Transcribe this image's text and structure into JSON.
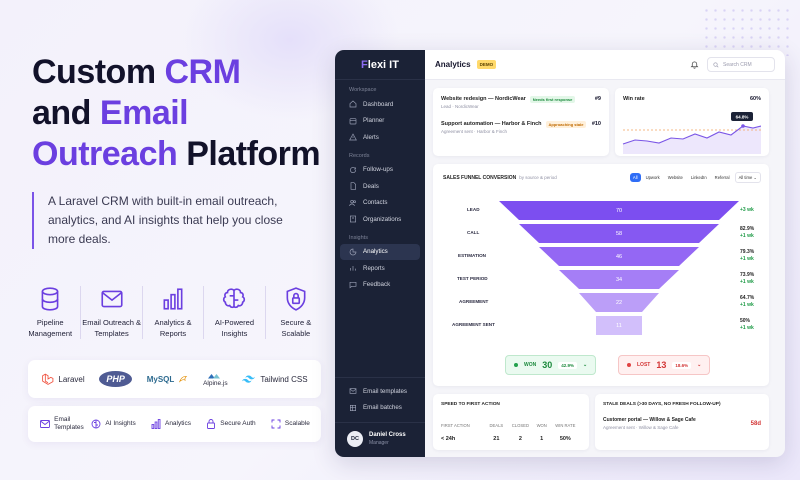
{
  "hero": {
    "line1_a": "Custom ",
    "line1_b": "CRM",
    "line2_a": "and ",
    "line2_b": "Email",
    "line3_a": "Outreach",
    "line3_b": " Platform",
    "subtitle": "A Laravel CRM with built-in email outreach, analytics, and AI insights that help you close more deals.",
    "accent_color": "#6b3fe0"
  },
  "features": [
    {
      "icon": "database-icon",
      "label": "Pipeline Management"
    },
    {
      "icon": "envelope-icon",
      "label": "Email Outreach & Templates"
    },
    {
      "icon": "bar-chart-icon",
      "label": "Analytics & Reports"
    },
    {
      "icon": "brain-icon",
      "label": "AI-Powered Insights"
    },
    {
      "icon": "shield-lock-icon",
      "label": "Secure & Scalable"
    }
  ],
  "tech": [
    "Laravel",
    "PHP",
    "MySQL",
    "Alpine.js",
    "Tailwind CSS"
  ],
  "pills": [
    "Email Templates",
    "AI Insights",
    "Analytics",
    "Secure Auth",
    "Scalable"
  ],
  "app": {
    "brand_a": "F",
    "brand_b": "lexi IT",
    "sections": {
      "workspace": "Workspace",
      "records": "Records",
      "insights": "Insights"
    },
    "nav": {
      "dashboard": "Dashboard",
      "planner": "Planner",
      "alerts": "Alerts",
      "followups": "Follow-ups",
      "deals": "Deals",
      "contacts": "Contacts",
      "organizations": "Organizations",
      "analytics": "Analytics",
      "reports": "Reports",
      "feedback": "Feedback",
      "email_templates": "Email templates",
      "email_batches": "Email batches"
    },
    "user": {
      "initials": "DC",
      "name": "Daniel Cross",
      "role": "Manager"
    },
    "topbar": {
      "title": "Analytics",
      "demo": "DEMO",
      "search_placeholder": "Search CRM"
    },
    "deals": [
      {
        "title": "Website redesign — NordicWear",
        "sub": "Lead · NordicWear",
        "badge": "Needs first response",
        "num": "#9"
      },
      {
        "title": "Support automation — Harbor & Finch",
        "sub": "Agreement sent · Harbor & Finch",
        "badge": "Approaching stale",
        "num": "#10"
      }
    ],
    "winrate": {
      "label": "Win rate",
      "value": "60%",
      "tooltip": "64.8%"
    },
    "funnel": {
      "title": "SALES FUNNEL CONVERSION",
      "subtitle": "by source & period",
      "filters": [
        "All",
        "Upwork",
        "Website",
        "LinkedIn",
        "Referral"
      ],
      "period": "All time",
      "stages": [
        {
          "name": "LEAD",
          "value": "70",
          "pct": "",
          "wk": "+3 wk"
        },
        {
          "name": "CALL",
          "value": "58",
          "pct": "82.9%",
          "wk": "+1 wk"
        },
        {
          "name": "ESTIMATION",
          "value": "46",
          "pct": "79.3%",
          "wk": "+1 wk"
        },
        {
          "name": "TEST PERIOD",
          "value": "34",
          "pct": "73.9%",
          "wk": "+1 wk"
        },
        {
          "name": "AGREEMENT",
          "value": "22",
          "pct": "64.7%",
          "wk": "+1 wk"
        },
        {
          "name": "AGREEMENT SENT",
          "value": "11",
          "pct": "50%",
          "wk": "+1 wk"
        }
      ],
      "won": {
        "label": "WON",
        "count": "30",
        "pct": "42.9%"
      },
      "lost": {
        "label": "LOST",
        "count": "13",
        "pct": "18.6%"
      }
    },
    "speed": {
      "title": "SPEED TO FIRST ACTION",
      "headers": [
        "FIRST ACTION",
        "DEALS",
        "CLOSED",
        "WON",
        "WIN RATE"
      ],
      "values": [
        "< 24h",
        "21",
        "2",
        "1",
        "50%"
      ]
    },
    "stale": {
      "title": "STALE DEALS (>30 DAYS, NO FRESH FOLLOW-UP)",
      "deal": "Customer portal — Willow & Sage Cafe",
      "sub": "Agreement sent · Willow & Sage Cafe",
      "age": "58d"
    }
  }
}
